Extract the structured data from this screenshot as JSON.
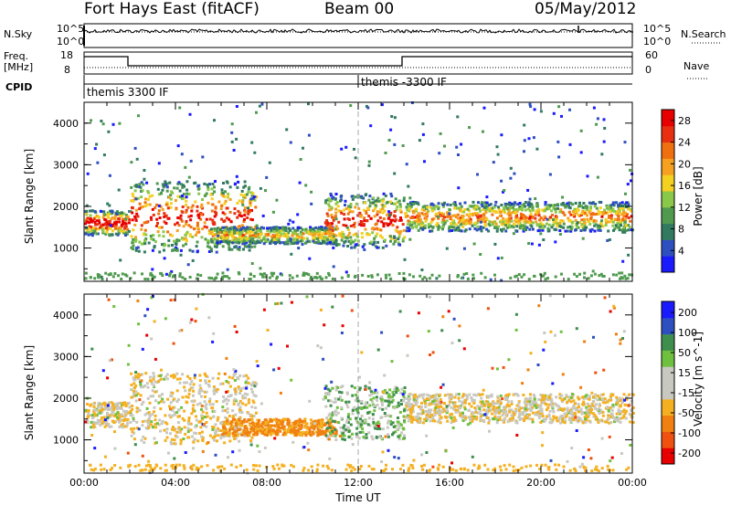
{
  "header": {
    "station": "Fort Hays East (fitACF)",
    "beam": "Beam 00",
    "date": "05/May/2012"
  },
  "panels": {
    "nsky_label": "N.Sky",
    "nsky_ticks": [
      "10^5",
      "10^0"
    ],
    "nsearch_label": "N.Search",
    "nsearch_ticks": [
      "10^5",
      "10^0"
    ],
    "freq_label": "Freq.",
    "freq_unit": "[MHz]",
    "freq_ticks": [
      "18",
      "8"
    ],
    "nave_label": "Nave",
    "nave_ticks": [
      "60",
      "0"
    ],
    "cpid_label": "CPID",
    "cpid_segments": [
      "themis 3300 IF",
      "themis -3300 IF"
    ]
  },
  "colors": {
    "power_scale": [
      "#1a1aff",
      "#2e4fc0",
      "#317a60",
      "#4f9a4f",
      "#8ac84a",
      "#f4d020",
      "#f5a020",
      "#f07010",
      "#e83010",
      "#e80000"
    ],
    "velocity_scale": [
      "#e80000",
      "#f05010",
      "#f08010",
      "#f4b020",
      "#c8c8c0",
      "#c8c8c0",
      "#70c040",
      "#3e8e4e",
      "#2e4fc0",
      "#1a1aff"
    ]
  },
  "chart_data": [
    {
      "type": "heatmap",
      "name": "power",
      "ylabel": "Slant Range [km]",
      "yticks": [
        1000,
        2000,
        3000,
        4000
      ],
      "ylim": [
        200,
        4500
      ],
      "xlim": [
        0,
        24
      ],
      "colorbar_label": "Power [dB]",
      "colorbar_ticks": [
        4,
        8,
        12,
        16,
        20,
        24,
        28
      ],
      "colorbar_range": [
        0,
        30
      ],
      "features": [
        {
          "t0": 0.0,
          "t1": 2.0,
          "r0": 1300,
          "r1": 1900,
          "peak_db": 28
        },
        {
          "t0": 2.0,
          "t1": 7.5,
          "r0": 900,
          "r1": 2600,
          "peak_db": 24
        },
        {
          "t0": 5.5,
          "t1": 11.0,
          "r0": 1100,
          "r1": 1500,
          "peak_db": 16
        },
        {
          "t0": 10.5,
          "t1": 14.0,
          "r0": 1000,
          "r1": 2300,
          "peak_db": 24
        },
        {
          "t0": 14.0,
          "t1": 24.0,
          "r0": 1400,
          "r1": 2100,
          "peak_db": 20
        }
      ]
    },
    {
      "type": "heatmap",
      "name": "velocity",
      "ylabel": "Slant Range [km]",
      "xlabel": "Time UT",
      "xticks": [
        "00:00",
        "04:00",
        "08:00",
        "12:00",
        "16:00",
        "20:00",
        "00:00"
      ],
      "yticks": [
        1000,
        2000,
        3000,
        4000
      ],
      "ylim": [
        200,
        4500
      ],
      "xlim": [
        0,
        24
      ],
      "colorbar_label": "Velocity [m s^-1]",
      "colorbar_ticks": [
        200,
        100,
        50,
        15,
        -15,
        -50,
        -100,
        -200
      ],
      "features": [
        {
          "t0": 0.0,
          "t1": 2.0,
          "r0": 1300,
          "r1": 1900,
          "velocity": -10
        },
        {
          "t0": 2.0,
          "t1": 7.5,
          "r0": 900,
          "r1": 2600,
          "velocity": -10
        },
        {
          "t0": 6.0,
          "t1": 11.0,
          "r0": 1100,
          "r1": 1500,
          "velocity": -60
        },
        {
          "t0": 10.5,
          "t1": 14.0,
          "r0": 1000,
          "r1": 2300,
          "velocity": 20
        },
        {
          "t0": 14.0,
          "t1": 24.0,
          "r0": 1400,
          "r1": 2100,
          "velocity": -10
        }
      ]
    }
  ]
}
